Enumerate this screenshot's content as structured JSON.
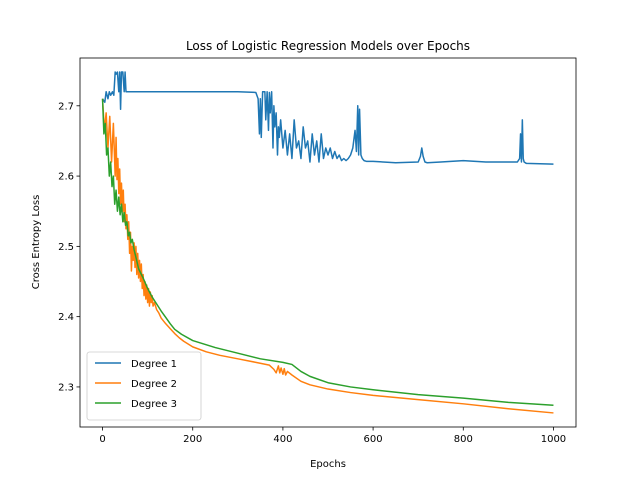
{
  "chart_data": {
    "type": "line",
    "title": "Loss of Logistic Regression Models over Epochs",
    "xlabel": "Epochs",
    "ylabel": "Cross Entropy Loss",
    "xlim": [
      -50,
      1050
    ],
    "ylim": [
      2.243,
      2.768
    ],
    "xticks": [
      0,
      200,
      400,
      600,
      800,
      1000
    ],
    "yticks": [
      2.3,
      2.4,
      2.5,
      2.6,
      2.7
    ],
    "grid": false,
    "legend": "lower-left",
    "series": [
      {
        "name": "Degree 1",
        "color": "#1f77b4",
        "x": [
          0,
          5,
          8,
          12,
          15,
          18,
          22,
          25,
          28,
          30,
          33,
          36,
          38,
          40,
          42,
          45,
          48,
          50,
          52,
          55,
          60,
          100,
          200,
          300,
          340,
          345,
          348,
          350,
          352,
          355,
          358,
          360,
          362,
          365,
          368,
          370,
          372,
          375,
          378,
          380,
          382,
          385,
          388,
          390,
          392,
          395,
          400,
          405,
          410,
          415,
          420,
          425,
          430,
          435,
          440,
          445,
          450,
          455,
          460,
          465,
          470,
          475,
          480,
          485,
          490,
          495,
          500,
          505,
          510,
          515,
          520,
          525,
          530,
          535,
          540,
          545,
          550,
          555,
          560,
          563,
          566,
          568,
          570,
          573,
          576,
          580,
          585,
          600,
          650,
          700,
          705,
          708,
          711,
          715,
          720,
          750,
          800,
          850,
          900,
          920,
          925,
          927,
          929,
          931,
          933,
          935,
          940,
          1000
        ],
        "y": [
          2.71,
          2.705,
          2.72,
          2.71,
          2.72,
          2.715,
          2.72,
          2.715,
          2.748,
          2.745,
          2.748,
          2.72,
          2.748,
          2.695,
          2.748,
          2.748,
          2.72,
          2.748,
          2.72,
          2.72,
          2.72,
          2.72,
          2.72,
          2.72,
          2.719,
          2.71,
          2.66,
          2.71,
          2.655,
          2.72,
          2.72,
          2.72,
          2.68,
          2.72,
          2.665,
          2.719,
          2.69,
          2.72,
          2.64,
          2.7,
          2.67,
          2.69,
          2.63,
          2.67,
          2.655,
          2.68,
          2.64,
          2.665,
          2.63,
          2.66,
          2.625,
          2.68,
          2.64,
          2.65,
          2.625,
          2.67,
          2.64,
          2.65,
          2.62,
          2.66,
          2.63,
          2.65,
          2.62,
          2.66,
          2.625,
          2.64,
          2.63,
          2.64,
          2.625,
          2.635,
          2.625,
          2.63,
          2.622,
          2.625,
          2.622,
          2.625,
          2.63,
          2.64,
          2.665,
          2.635,
          2.7,
          2.63,
          2.695,
          2.63,
          2.625,
          2.622,
          2.621,
          2.621,
          2.619,
          2.62,
          2.628,
          2.64,
          2.628,
          2.62,
          2.619,
          2.62,
          2.622,
          2.62,
          2.62,
          2.62,
          2.625,
          2.66,
          2.62,
          2.68,
          2.625,
          2.62,
          2.618,
          2.617
        ]
      },
      {
        "name": "Degree 2",
        "color": "#ff7f0e",
        "x": [
          0,
          4,
          8,
          12,
          16,
          20,
          24,
          28,
          30,
          32,
          34,
          36,
          38,
          40,
          42,
          44,
          46,
          48,
          50,
          52,
          54,
          56,
          58,
          60,
          62,
          64,
          66,
          68,
          70,
          72,
          74,
          76,
          78,
          80,
          82,
          84,
          86,
          88,
          90,
          92,
          94,
          96,
          98,
          100,
          102,
          104,
          106,
          108,
          110,
          112,
          115,
          120,
          125,
          130,
          140,
          150,
          160,
          170,
          180,
          200,
          230,
          260,
          300,
          340,
          370,
          380,
          385,
          390,
          393,
          396,
          400,
          403,
          406,
          410,
          420,
          440,
          460,
          500,
          550,
          600,
          700,
          800,
          900,
          1000
        ],
        "y": [
          2.71,
          2.665,
          2.69,
          2.64,
          2.685,
          2.62,
          2.675,
          2.6,
          2.655,
          2.595,
          2.625,
          2.575,
          2.61,
          2.56,
          2.59,
          2.55,
          2.58,
          2.535,
          2.56,
          2.525,
          2.545,
          2.51,
          2.535,
          2.49,
          2.52,
          2.465,
          2.5,
          2.48,
          2.505,
          2.47,
          2.5,
          2.46,
          2.49,
          2.455,
          2.48,
          2.45,
          2.475,
          2.44,
          2.46,
          2.43,
          2.45,
          2.425,
          2.445,
          2.42,
          2.44,
          2.415,
          2.435,
          2.42,
          2.43,
          2.415,
          2.42,
          2.41,
          2.405,
          2.398,
          2.39,
          2.383,
          2.376,
          2.37,
          2.365,
          2.357,
          2.35,
          2.345,
          2.34,
          2.335,
          2.331,
          2.325,
          2.32,
          2.33,
          2.32,
          2.327,
          2.318,
          2.326,
          2.317,
          2.322,
          2.317,
          2.308,
          2.303,
          2.297,
          2.292,
          2.288,
          2.282,
          2.276,
          2.269,
          2.263
        ]
      },
      {
        "name": "Degree 3",
        "color": "#2ca02c",
        "x": [
          0,
          3,
          6,
          9,
          12,
          15,
          18,
          21,
          24,
          27,
          30,
          33,
          36,
          39,
          42,
          45,
          48,
          51,
          54,
          57,
          60,
          63,
          66,
          70,
          75,
          80,
          90,
          100,
          110,
          120,
          130,
          140,
          150,
          160,
          175,
          200,
          250,
          300,
          350,
          400,
          420,
          440,
          460,
          500,
          550,
          600,
          700,
          800,
          900,
          1000
        ],
        "y": [
          2.71,
          2.66,
          2.675,
          2.63,
          2.64,
          2.6,
          2.62,
          2.585,
          2.6,
          2.56,
          2.58,
          2.55,
          2.57,
          2.545,
          2.56,
          2.535,
          2.548,
          2.53,
          2.535,
          2.515,
          2.52,
          2.505,
          2.51,
          2.495,
          2.482,
          2.468,
          2.455,
          2.44,
          2.428,
          2.418,
          2.408,
          2.399,
          2.39,
          2.382,
          2.375,
          2.366,
          2.356,
          2.348,
          2.34,
          2.335,
          2.332,
          2.322,
          2.315,
          2.306,
          2.3,
          2.296,
          2.289,
          2.284,
          2.278,
          2.274
        ]
      }
    ]
  }
}
